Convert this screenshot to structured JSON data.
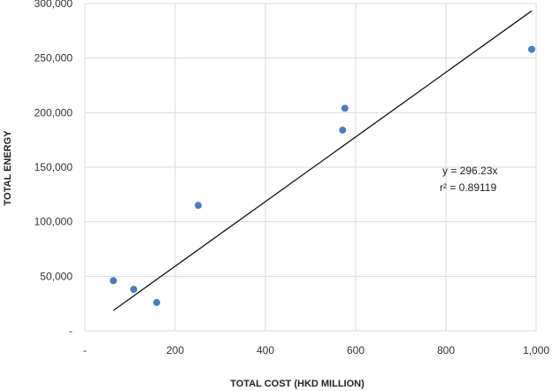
{
  "chart_data": {
    "type": "scatter",
    "xlabel": "TOTAL COST (HKD MILLION)",
    "ylabel": "TOTAL ENERGY",
    "xlim": [
      0,
      1000
    ],
    "ylim": [
      0,
      300000
    ],
    "x_ticks": [
      "-",
      "200",
      "400",
      "600",
      "800",
      "1,000"
    ],
    "y_ticks": [
      "-",
      "50,000",
      "100,000",
      "150,000",
      "200,000",
      "250,000",
      "300,000"
    ],
    "grid": true,
    "points": [
      {
        "x": 63,
        "y": 46000
      },
      {
        "x": 108,
        "y": 38000
      },
      {
        "x": 159,
        "y": 26000
      },
      {
        "x": 251,
        "y": 115000
      },
      {
        "x": 571,
        "y": 184000
      },
      {
        "x": 576,
        "y": 204000
      },
      {
        "x": 990,
        "y": 258000
      }
    ],
    "trendline": {
      "slope": 296.23,
      "x_range": [
        63,
        990
      ],
      "equation": "y = 296.23x",
      "r2": "r² = 0.89119"
    },
    "marker_color": "#4a7ebb",
    "line_color": "#111111",
    "grid_color": "#d9d9d9"
  }
}
